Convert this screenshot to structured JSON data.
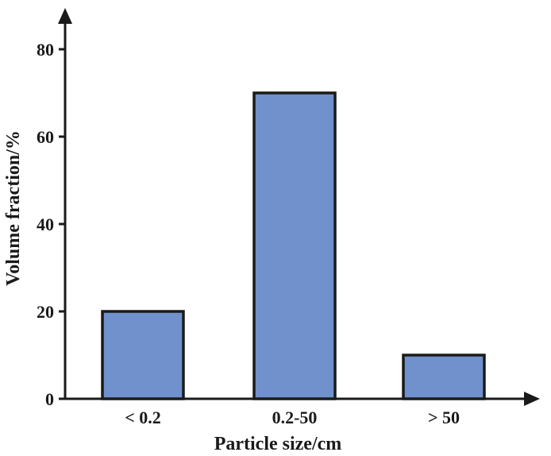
{
  "chart_data": {
    "type": "bar",
    "title": "",
    "xlabel": "Particle size/cm",
    "ylabel": "Volume fraction/%",
    "categories": [
      "< 0.2",
      "0.2-50",
      "> 50"
    ],
    "values": [
      20,
      70,
      10
    ],
    "ylim": [
      0,
      80
    ],
    "yticks": [
      "0",
      "20",
      "40",
      "60",
      "80"
    ],
    "grid": false,
    "legend": "none",
    "bar_color": "#7191cc",
    "bar_edge_color": "#1a1a1a",
    "axis_color": "#1a1a1a"
  }
}
